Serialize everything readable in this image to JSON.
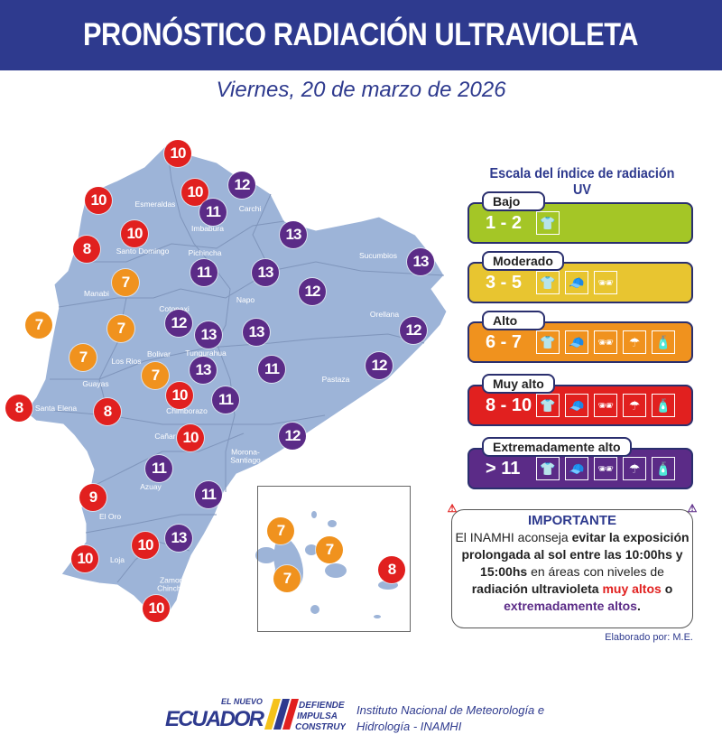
{
  "header": {
    "title": "PRONÓSTICO RADIACIÓN ULTRAVIOLETA",
    "date": "Viernes, 20 de marzo de 2026"
  },
  "colors": {
    "navy": "#2e3a8e",
    "map": "#9db4d8",
    "low": "#a4c626",
    "moderate": "#e8c530",
    "high": "#f0921e",
    "very_high": "#e1201f",
    "extreme": "#5b2b87"
  },
  "map": {
    "provinces": [
      "Esmeraldas",
      "Carchi",
      "Imbabura",
      "Santo Domingo",
      "Pichincha",
      "Sucumbios",
      "Manabi",
      "Napo",
      "Cotopaxi",
      "Orellana",
      "Bolivar",
      "Los Rios",
      "Tungurahua",
      "Guayas",
      "Pastaza",
      "Santa Elena",
      "Chimborazo",
      "Cañar",
      "Morona-Santiago",
      "Azuay",
      "El Oro",
      "Loja",
      "Zamora-Chinchipe"
    ],
    "markers": [
      10,
      12,
      10,
      11,
      10,
      10,
      8,
      13,
      13,
      11,
      13,
      12,
      7,
      7,
      7,
      12,
      13,
      13,
      12,
      7,
      11,
      12,
      13,
      7,
      10,
      11,
      8,
      8,
      10,
      12,
      11,
      11,
      9,
      13,
      10,
      10,
      10
    ],
    "galapagos_markers": [
      7,
      7,
      7,
      8
    ]
  },
  "legend": {
    "title": "Escala del índice de radiación UV",
    "levels": [
      {
        "name": "Bajo",
        "range": "1 - 2",
        "icons": [
          "shirt-icon"
        ]
      },
      {
        "name": "Moderado",
        "range": "3 - 5",
        "icons": [
          "shirt-icon",
          "cap-icon",
          "sunglasses-icon"
        ]
      },
      {
        "name": "Alto",
        "range": "6 - 7",
        "icons": [
          "shirt-icon",
          "cap-icon",
          "sunglasses-icon",
          "umbrella-icon",
          "sunscreen-icon"
        ]
      },
      {
        "name": "Muy alto",
        "range": "8 - 10",
        "icons": [
          "shirt-icon",
          "cap-icon",
          "sunglasses-icon",
          "umbrella-icon",
          "sunscreen-icon"
        ]
      },
      {
        "name": "Extremadamente alto",
        "range": "> 11",
        "icons": [
          "shirt-icon",
          "cap-icon",
          "sunglasses-icon",
          "umbrella-icon",
          "sunscreen-icon"
        ]
      }
    ]
  },
  "important": {
    "title": "IMPORTANTE",
    "p1": "El INAMHI aconseja ",
    "b1": "evitar la exposición prolongada al sol entre las 10:00hs y 15:00hs",
    "p2": " en áreas con niveles de ",
    "b2": "radiación ultravioleta ",
    "red": "muy altos",
    "p3": " o ",
    "purple": "extremadamente altos",
    "end": "."
  },
  "credit": "Elaborado por: M.E.",
  "footer": {
    "logo_text": [
      "EL NUEVO",
      "ECUADOR",
      "DEFIENDE",
      "IMPULSA",
      "CONSTRUYE"
    ],
    "institute_line1": "Instituto Nacional de Meteorología e",
    "institute_line2": "Hidrología - INAMHI"
  }
}
